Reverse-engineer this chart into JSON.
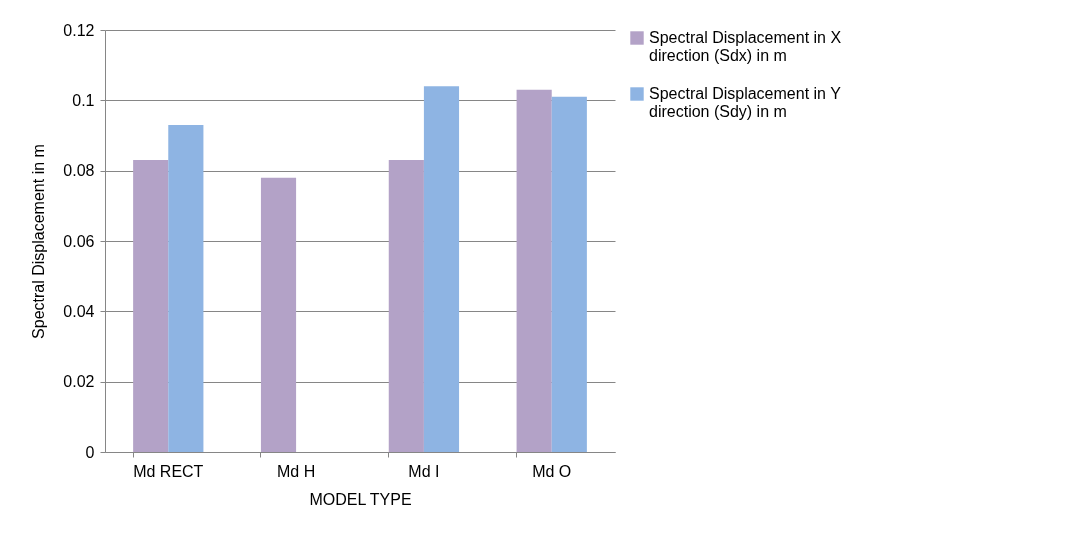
{
  "chart_data": {
    "type": "bar",
    "xlabel": "MODEL TYPE",
    "ylabel": "Spectral Displacement in m",
    "categories": [
      "Md RECT",
      "Md H",
      "Md I",
      "Md O"
    ],
    "series": [
      {
        "name": "Spectral Displacement in X direction (Sdx) in m",
        "color": "#b3a2c7",
        "values": [
          0.083,
          0.078,
          0.083,
          0.103
        ]
      },
      {
        "name": "Spectral Displacement in Y direction (Sdy) in m",
        "color": "#8eb4e3",
        "values": [
          0.093,
          null,
          0.104,
          0.101
        ]
      }
    ],
    "ylim": [
      0,
      0.12
    ],
    "yticks": [
      0,
      0.02,
      0.04,
      0.06,
      0.08,
      0.1,
      0.12
    ],
    "grid": "y",
    "legend": "right"
  }
}
